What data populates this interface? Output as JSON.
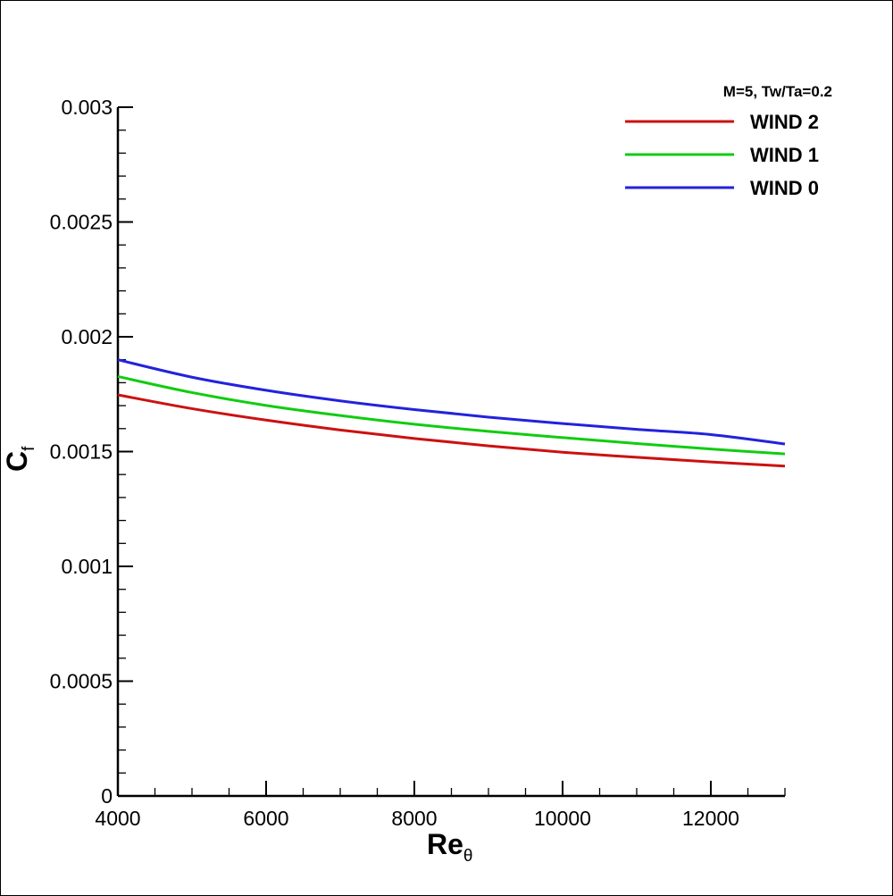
{
  "chart_data": {
    "type": "line",
    "title": "",
    "xlabel": "Re",
    "xlabel_sub": "θ",
    "ylabel": "C",
    "ylabel_sub": "f",
    "xlim": [
      4000,
      13000
    ],
    "ylim": [
      0,
      0.003
    ],
    "x_ticks": [
      4000,
      6000,
      8000,
      10000,
      12000
    ],
    "x_tick_labels": [
      "4000",
      "6000",
      "8000",
      "10000",
      "12000"
    ],
    "y_ticks": [
      0,
      0.0005,
      0.001,
      0.0015,
      0.002,
      0.0025,
      0.003
    ],
    "y_tick_labels": [
      "0",
      "0.0005",
      "0.001",
      "0.0015",
      "0.002",
      "0.0025",
      "0.003"
    ],
    "grid": false,
    "legend": {
      "title": "M=5, Tw/Ta=0.2",
      "placement": "top-right"
    },
    "series": [
      {
        "name": "WIND 2",
        "color": "#cc1111",
        "x": [
          4000,
          5000,
          6000,
          7000,
          8000,
          9000,
          10000,
          11000,
          12000,
          13000
        ],
        "values": [
          0.001747,
          0.001687,
          0.001637,
          0.001594,
          0.001557,
          0.001525,
          0.001497,
          0.001475,
          0.001455,
          0.001437
        ]
      },
      {
        "name": "WIND 1",
        "color": "#11cc11",
        "x": [
          4000,
          5000,
          6000,
          7000,
          8000,
          9000,
          10000,
          11000,
          12000,
          13000
        ],
        "values": [
          0.001827,
          0.001757,
          0.001701,
          0.001657,
          0.001619,
          0.001588,
          0.001561,
          0.001535,
          0.001511,
          0.00149
        ]
      },
      {
        "name": "WIND 0",
        "color": "#2222dd",
        "x": [
          4000,
          5000,
          6000,
          7000,
          8000,
          9000,
          10000,
          11000,
          12000,
          13000
        ],
        "values": [
          0.0019,
          0.001824,
          0.001767,
          0.001721,
          0.001683,
          0.00165,
          0.001622,
          0.001597,
          0.001574,
          0.001533
        ]
      }
    ]
  }
}
